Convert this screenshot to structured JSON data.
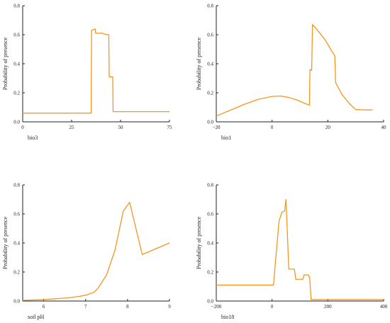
{
  "figure": {
    "line_color": "#f5961f",
    "axis_color": "#222222"
  },
  "chart_data": [
    {
      "type": "line",
      "xlabel": "bio3",
      "ylabel": "Probability of presence",
      "xlim": [
        0,
        75
      ],
      "ylim": [
        0,
        0.8
      ],
      "xticks": [
        0,
        25,
        50,
        75
      ],
      "yticks": [
        0.0,
        0.2,
        0.4,
        0.6,
        0.8
      ],
      "x": [
        0,
        35,
        35.2,
        37,
        37.3,
        40,
        41,
        41.5,
        44,
        44.2,
        44.8,
        45,
        46,
        46.2,
        50,
        60,
        75
      ],
      "y": [
        0.06,
        0.06,
        0.63,
        0.64,
        0.61,
        0.61,
        0.61,
        0.605,
        0.6,
        0.31,
        0.31,
        0.31,
        0.31,
        0.07,
        0.07,
        0.07,
        0.07
      ]
    },
    {
      "type": "line",
      "xlabel": "bio1",
      "ylabel": "Probability of presence",
      "xlim": [
        -20,
        40
      ],
      "ylim": [
        0,
        0.8
      ],
      "xticks": [
        -20,
        0,
        20,
        40
      ],
      "yticks": [
        0.0,
        0.2,
        0.4,
        0.6,
        0.8
      ],
      "x": [
        -20,
        -15,
        -10,
        -5,
        0,
        3,
        6,
        9,
        12,
        13.4,
        13.6,
        14.2,
        14.5,
        15,
        17,
        19,
        21,
        22.5,
        22.8,
        25,
        28,
        30,
        33,
        36
      ],
      "y": [
        0.04,
        0.08,
        0.12,
        0.155,
        0.175,
        0.178,
        0.168,
        0.15,
        0.125,
        0.115,
        0.36,
        0.355,
        0.67,
        0.66,
        0.615,
        0.565,
        0.5,
        0.455,
        0.27,
        0.19,
        0.12,
        0.085,
        0.082,
        0.082
      ]
    },
    {
      "type": "line",
      "xlabel": "soil pH",
      "ylabel": "Probability of presence",
      "xlim": [
        5.5,
        9
      ],
      "ylim": [
        0,
        0.8
      ],
      "xticks": [
        6,
        7,
        8,
        9
      ],
      "yticks": [
        0.0,
        0.2,
        0.4,
        0.6,
        0.8
      ],
      "x": [
        5.5,
        6,
        6.5,
        6.8,
        7,
        7.2,
        7.3,
        7.5,
        7.7,
        7.9,
        8.05,
        8.35,
        9
      ],
      "y": [
        0.005,
        0.01,
        0.02,
        0.03,
        0.04,
        0.06,
        0.09,
        0.18,
        0.35,
        0.62,
        0.68,
        0.32,
        0.4
      ]
    },
    {
      "type": "line",
      "xlabel": "bio18",
      "ylabel": "Probability of presence",
      "xlim": [
        -200,
        400
      ],
      "ylim": [
        0,
        0.8
      ],
      "xticks": [
        -200,
        0,
        200,
        400
      ],
      "yticks": [
        0.0,
        0.2,
        0.4,
        0.6,
        0.8
      ],
      "x": [
        -200,
        -100,
        0,
        5,
        25,
        35,
        45,
        50,
        60,
        63,
        80,
        85,
        100,
        110,
        115,
        130,
        135,
        140,
        150,
        200,
        300,
        400
      ],
      "y": [
        0.11,
        0.11,
        0.11,
        0.11,
        0.55,
        0.61,
        0.62,
        0.7,
        0.22,
        0.22,
        0.22,
        0.15,
        0.15,
        0.15,
        0.18,
        0.18,
        0.16,
        0.01,
        0.01,
        0.01,
        0.01,
        0.01
      ]
    }
  ]
}
